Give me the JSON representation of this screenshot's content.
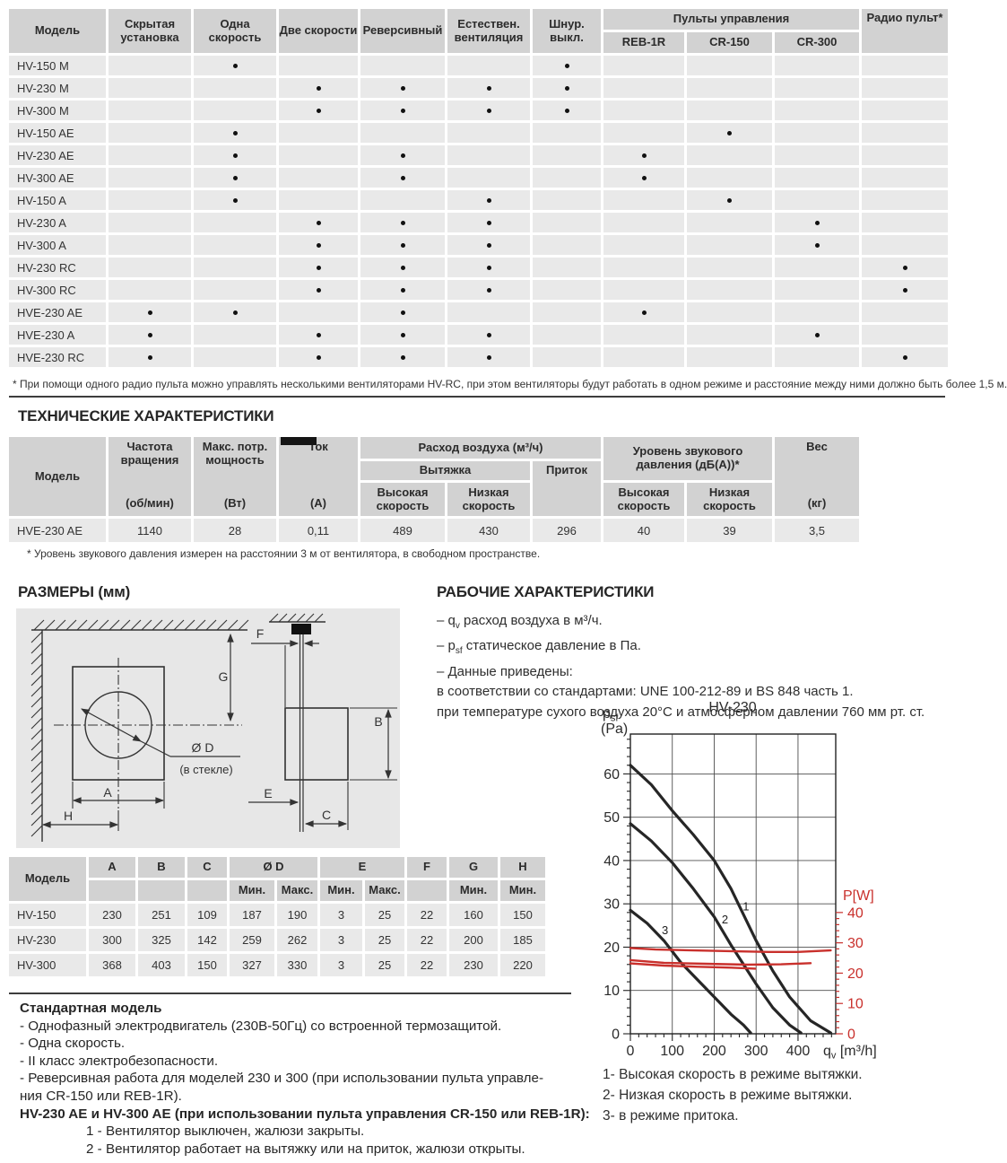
{
  "features_table": {
    "header": {
      "model": "Модель",
      "columns": [
        "Скрытая установка",
        "Одна скорость",
        "Две скорости",
        "Реверсивный",
        "Естествен. вентиляция",
        "Шнур. выкл."
      ],
      "controls_group": "Пульты управления",
      "controls": [
        "REB-1R",
        "CR-150",
        "CR-300"
      ],
      "radio": "Радио пульт*"
    },
    "rows": [
      {
        "model": "HV-150 M",
        "dots": [
          0,
          1,
          0,
          0,
          0,
          1,
          0,
          0,
          0,
          0
        ]
      },
      {
        "model": "HV-230 M",
        "dots": [
          0,
          0,
          1,
          1,
          1,
          1,
          0,
          0,
          0,
          0
        ]
      },
      {
        "model": "HV-300 M",
        "dots": [
          0,
          0,
          1,
          1,
          1,
          1,
          0,
          0,
          0,
          0
        ]
      },
      {
        "model": "HV-150 AE",
        "dots": [
          0,
          1,
          0,
          0,
          0,
          0,
          0,
          1,
          0,
          0
        ]
      },
      {
        "model": "HV-230 AE",
        "dots": [
          0,
          1,
          0,
          1,
          0,
          0,
          1,
          0,
          0,
          0
        ]
      },
      {
        "model": "HV-300 AE",
        "dots": [
          0,
          1,
          0,
          1,
          0,
          0,
          1,
          0,
          0,
          0
        ]
      },
      {
        "model": "HV-150 A",
        "dots": [
          0,
          1,
          0,
          0,
          1,
          0,
          0,
          1,
          0,
          0
        ]
      },
      {
        "model": "HV-230 A",
        "dots": [
          0,
          0,
          1,
          1,
          1,
          0,
          0,
          0,
          1,
          0
        ]
      },
      {
        "model": "HV-300 A",
        "dots": [
          0,
          0,
          1,
          1,
          1,
          0,
          0,
          0,
          1,
          0
        ]
      },
      {
        "model": "HV-230 RC",
        "dots": [
          0,
          0,
          1,
          1,
          1,
          0,
          0,
          0,
          0,
          1
        ]
      },
      {
        "model": "HV-300 RC",
        "dots": [
          0,
          0,
          1,
          1,
          1,
          0,
          0,
          0,
          0,
          1
        ]
      },
      {
        "model": "HVE-230 AE",
        "dots": [
          1,
          1,
          0,
          1,
          0,
          0,
          1,
          0,
          0,
          0
        ]
      },
      {
        "model": "HVE-230 A",
        "dots": [
          1,
          0,
          1,
          1,
          1,
          0,
          0,
          0,
          1,
          0
        ]
      },
      {
        "model": "HVE-230 RC",
        "dots": [
          1,
          0,
          1,
          1,
          1,
          0,
          0,
          0,
          0,
          1
        ]
      }
    ],
    "footnote": "* При помощи одного радио пульта можно управлять несколькими вентиляторами HV-RC, при этом вентиляторы будут работать в одном режиме и расстояние между ними должно быть более 1,5 м."
  },
  "tech_section": {
    "title": "ТЕХНИЧЕСКИЕ ХАРАКТЕРИСТИКИ",
    "table": {
      "model_h": "Модель",
      "freq_name": "Частота вращения",
      "freq_unit": "(об/мин)",
      "power_name": "Макс. потр. мощность",
      "power_unit": "(Вт)",
      "current_name": "Ток",
      "current_unit": "(А)",
      "airflow": "Расход воздуха (м³/ч)",
      "exhaust": "Вытяжка",
      "supply": "Приток",
      "high": "Высокая скорость",
      "low": "Низкая скорость",
      "noise": "Уровень звукового давления (дБ(А))*",
      "weight_name": "Вес",
      "weight_unit": "(кг)",
      "row": {
        "model": "HVE-230 AE",
        "values": [
          "1140",
          "28",
          "0,11",
          "489",
          "430",
          "296",
          "40",
          "39",
          "3,5"
        ]
      }
    },
    "footnote": "* Уровень звукового давления измерен на расстоянии 3 м от вентилятора, в свободном пространстве."
  },
  "dimensions_section": {
    "title": "РАЗМЕРЫ (мм)",
    "diagram": {
      "A": "A",
      "B": "B",
      "C": "C",
      "E": "E",
      "F": "F",
      "G": "G",
      "H": "H",
      "D_label": "Ø D",
      "glass": "(в стекле)"
    },
    "table": {
      "model_h": "Модель",
      "a": "A",
      "b": "B",
      "c": "C",
      "d_label": "Ø D",
      "e_label": "E",
      "f": "F",
      "g": "G",
      "h": "H",
      "min": "Мин.",
      "max": "Макс.",
      "rows": [
        {
          "model": "HV-150",
          "values": [
            "230",
            "251",
            "109",
            "187",
            "190",
            "3",
            "25",
            "22",
            "160",
            "150"
          ]
        },
        {
          "model": "HV-230",
          "values": [
            "300",
            "325",
            "142",
            "259",
            "262",
            "3",
            "25",
            "22",
            "200",
            "185"
          ]
        },
        {
          "model": "HV-300",
          "values": [
            "368",
            "403",
            "150",
            "327",
            "330",
            "3",
            "25",
            "22",
            "230",
            "220"
          ]
        }
      ]
    }
  },
  "performance_section": {
    "title": "РАБОЧИЕ ХАРАКТЕРИСТИКИ",
    "notes": [
      [
        [
          "t",
          "– q"
        ],
        [
          "sub",
          "v"
        ],
        [
          "t",
          " расход воздуха в м³/ч."
        ]
      ],
      [
        [
          "t",
          "– p"
        ],
        [
          "sub",
          "sf"
        ],
        [
          "t",
          " статическое давление в Па."
        ]
      ],
      [
        [
          "t",
          "– Данные приведены:"
        ]
      ],
      [
        [
          "t",
          "в соответствии со стандартами: UNE 100-212-89 и BS 848 часть 1."
        ]
      ],
      [
        [
          "t",
          "при температуре сухого воздуха 20°С и атмосферном давлении 760 мм рт. ст."
        ]
      ]
    ],
    "legend": [
      "1- Высокая скорость в режиме вытяжки.",
      "2- Низкая скорость в режиме вытяжки.",
      "3- в режиме притока."
    ]
  },
  "chart_data": {
    "type": "line",
    "title": "HV-230",
    "y_left_label": {
      "main": "p",
      "sub": "sf",
      "unit": "(Pa)"
    },
    "x_label": {
      "main": "q",
      "sub": "v",
      "unit": " [m³/h]"
    },
    "y_right_label": "P[W]",
    "x_ticks": [
      0,
      100,
      200,
      300,
      400
    ],
    "x_max": 490,
    "x_minor_step": 20,
    "y_left_ticks": [
      0,
      10,
      20,
      30,
      40,
      50,
      60
    ],
    "y_left_max": 69.2,
    "y_left_minor_step": 2,
    "y_right_ticks": [
      0,
      10,
      20,
      30,
      40
    ],
    "y_right_minor_step": 2,
    "y_right_ratio": 0.7,
    "grid": true,
    "power_color": "#c9302c",
    "curve_color": "#262626",
    "series": [
      {
        "name": "Высокая скорость в режиме вытяжки",
        "axis": "left",
        "label": "1",
        "label_at": [
          268,
          28.5
        ],
        "color": "#262626",
        "points": [
          [
            0,
            62
          ],
          [
            50,
            57.5
          ],
          [
            100,
            51.5
          ],
          [
            150,
            46
          ],
          [
            200,
            40
          ],
          [
            240,
            33.5
          ],
          [
            270,
            27.5
          ],
          [
            300,
            21.5
          ],
          [
            340,
            14.5
          ],
          [
            380,
            8.5
          ],
          [
            430,
            3
          ],
          [
            478,
            0.2
          ]
        ]
      },
      {
        "name": "Низкая скорость в режиме вытяжки",
        "axis": "left",
        "label": "2",
        "label_at": [
          218,
          25.5
        ],
        "color": "#262626",
        "points": [
          [
            0,
            48.5
          ],
          [
            50,
            44.5
          ],
          [
            100,
            39.5
          ],
          [
            150,
            33.5
          ],
          [
            200,
            27
          ],
          [
            240,
            20.5
          ],
          [
            270,
            16
          ],
          [
            300,
            11.5
          ],
          [
            340,
            6
          ],
          [
            380,
            2
          ],
          [
            407,
            0.2
          ]
        ]
      },
      {
        "name": "В режиме притока",
        "axis": "left",
        "label": "3",
        "label_at": [
          75,
          23
        ],
        "color": "#262626",
        "points": [
          [
            0,
            28.5
          ],
          [
            40,
            25.5
          ],
          [
            80,
            21.5
          ],
          [
            120,
            16.5
          ],
          [
            160,
            12.5
          ],
          [
            200,
            8.5
          ],
          [
            240,
            4.5
          ],
          [
            270,
            2
          ],
          [
            287,
            0.2
          ]
        ]
      },
      {
        "name": "P, высокая скорость (вытяжка)",
        "axis": "right",
        "color": "#c9302c",
        "points": [
          [
            0,
            28.3
          ],
          [
            60,
            27.8
          ],
          [
            150,
            27.5
          ],
          [
            250,
            27.2
          ],
          [
            330,
            27.0
          ],
          [
            400,
            27.0
          ],
          [
            478,
            27.5
          ]
        ]
      },
      {
        "name": "P, низкая скорость (вытяжка)",
        "axis": "right",
        "color": "#c9302c",
        "points": [
          [
            0,
            24.3
          ],
          [
            80,
            23.4
          ],
          [
            180,
            23.1
          ],
          [
            280,
            22.8
          ],
          [
            360,
            22.9
          ],
          [
            430,
            23.3
          ]
        ]
      },
      {
        "name": "P, приток",
        "axis": "right",
        "color": "#c9302c",
        "points": [
          [
            0,
            23.2
          ],
          [
            80,
            22.5
          ],
          [
            160,
            22.1
          ],
          [
            240,
            21.8
          ],
          [
            298,
            21.5
          ]
        ]
      }
    ]
  },
  "standard_model": {
    "title": "Стандартная модель",
    "lines": [
      "- Однофазный электродвигатель (230В-50Гц) со встроенной термозащитой.",
      "- Одна скорость.",
      "- II класс электробезопасности.",
      "- Реверсивная работа для моделей 230 и 300 (при использовании пульта управле-",
      "ния CR-150 или REB-1R)."
    ],
    "bold_line": "HV-230 AE и HV-300 AE (при использовании пульта управления CR-150 или REB-1R):",
    "numbered": [
      "1 - Вентилятор выключен, жалюзи закрыты.",
      "2 - Вентилятор работает на вытяжку или на приток, жалюзи открыты."
    ]
  }
}
